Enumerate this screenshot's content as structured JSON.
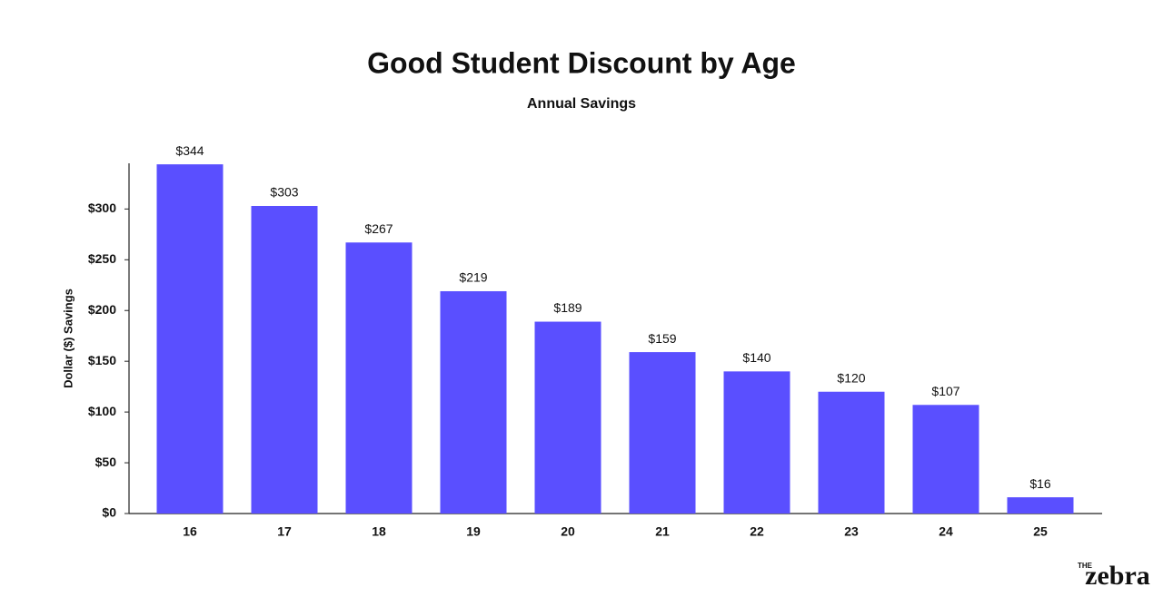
{
  "chart_data": {
    "type": "bar",
    "title": "Good Student Discount by Age",
    "subtitle": "Annual Savings",
    "y_label": "Dollar ($) Savings",
    "categories": [
      "16",
      "17",
      "18",
      "19",
      "20",
      "21",
      "22",
      "23",
      "24",
      "25"
    ],
    "values": [
      344,
      303,
      267,
      219,
      189,
      159,
      140,
      120,
      107,
      16
    ],
    "value_labels": [
      "$344",
      "$303",
      "$267",
      "$219",
      "$189",
      "$159",
      "$140",
      "$120",
      "$107",
      "$16"
    ],
    "color": "#5a4fff",
    "ylim": [
      0,
      345
    ],
    "yticks": [
      {
        "value": 0,
        "label": "$0"
      },
      {
        "value": 50,
        "label": "$50"
      },
      {
        "value": 100,
        "label": "$100"
      },
      {
        "value": 150,
        "label": "$150"
      },
      {
        "value": 200,
        "label": "$200"
      },
      {
        "value": 250,
        "label": "$250"
      },
      {
        "value": 300,
        "label": "$300"
      }
    ],
    "grid": false
  },
  "logo": {
    "small": "THE",
    "name": "zebra"
  }
}
